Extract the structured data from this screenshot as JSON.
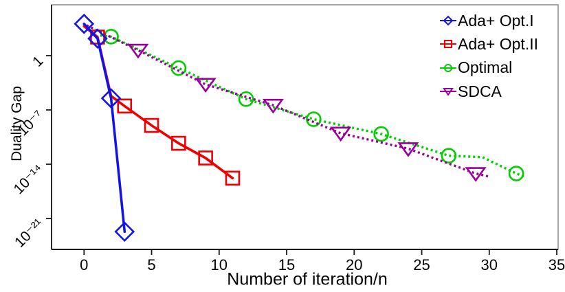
{
  "chart_data": {
    "type": "line",
    "title": "",
    "xlabel": "Number of iteration/n",
    "ylabel": "Duality Gap",
    "grid": false,
    "legend_position": "top-right",
    "x_axis": {
      "label": "Number of iteration/n",
      "ticks": [
        0,
        5,
        10,
        15,
        20,
        25,
        30,
        35
      ],
      "range": [
        -2.4,
        35.5
      ]
    },
    "y_axis": {
      "label": "Duality Gap",
      "scale": "log10",
      "ticks": [
        {
          "label": "1",
          "log10": 0
        },
        {
          "label": "10⁻⁷",
          "log10": -7
        },
        {
          "label": "10⁻¹⁴",
          "log10": -14
        },
        {
          "label": "10⁻²¹",
          "log10": -21
        }
      ],
      "range_log10": [
        -25,
        6.5
      ]
    },
    "point_format": "[iteration/n, log10(duality_gap)]",
    "series": [
      {
        "name": "Ada+ Opt.I",
        "color": "#1313E8",
        "line_style": "solid",
        "marker": "diamond",
        "line_points": [
          [
            0,
            4.1
          ],
          [
            1,
            2.2
          ],
          [
            2,
            -5.5
          ],
          [
            3,
            -22.7
          ]
        ],
        "marker_points": [
          [
            0,
            4.1
          ],
          [
            1,
            2.2
          ],
          [
            2,
            -5.5
          ],
          [
            3,
            -22.7
          ]
        ]
      },
      {
        "name": "Ada+ Opt.II",
        "color": "#EE0000",
        "line_style": "solid",
        "marker": "square",
        "line_points": [
          [
            0,
            3.8
          ],
          [
            1,
            2.4
          ],
          [
            2,
            -5.2
          ],
          [
            3,
            -6.5
          ],
          [
            5,
            -9.0
          ],
          [
            7,
            -11.3
          ],
          [
            9,
            -13.2
          ],
          [
            11,
            -15.8
          ]
        ],
        "marker_points": [
          [
            1,
            2.4
          ],
          [
            3,
            -6.5
          ],
          [
            5,
            -9.0
          ],
          [
            7,
            -11.3
          ],
          [
            9,
            -13.2
          ],
          [
            11,
            -15.8
          ]
        ]
      },
      {
        "name": "Optimal",
        "color": "#00CE00",
        "line_style": "dotted",
        "marker": "circle",
        "line_points": [
          [
            1.2,
            2.6
          ],
          [
            2,
            2.45
          ],
          [
            7,
            -1.6
          ],
          [
            12,
            -5.6
          ],
          [
            17,
            -8.2
          ],
          [
            22,
            -10.1
          ],
          [
            27,
            -12.9
          ],
          [
            29.5,
            -13.1
          ],
          [
            32,
            -15.2
          ],
          [
            32.7,
            -15.7
          ]
        ],
        "marker_points": [
          [
            2,
            2.45
          ],
          [
            7,
            -1.6
          ],
          [
            12,
            -5.6
          ],
          [
            17,
            -8.2
          ],
          [
            22,
            -10.1
          ],
          [
            27,
            -12.9
          ],
          [
            32,
            -15.2
          ]
        ]
      },
      {
        "name": "SDCA",
        "color": "#990099",
        "line_style": "dotted",
        "marker": "triangle-down",
        "line_points": [
          [
            0.2,
            3.9
          ],
          [
            4,
            0.7
          ],
          [
            9,
            -3.7
          ],
          [
            14,
            -6.4
          ],
          [
            19,
            -10.0
          ],
          [
            24,
            -12.0
          ],
          [
            29,
            -15.2
          ],
          [
            30,
            -15.6
          ]
        ],
        "marker_points": [
          [
            4,
            0.7
          ],
          [
            9,
            -3.7
          ],
          [
            14,
            -6.4
          ],
          [
            19,
            -10.0
          ],
          [
            24,
            -12.0
          ],
          [
            29,
            -15.2
          ]
        ]
      }
    ]
  }
}
